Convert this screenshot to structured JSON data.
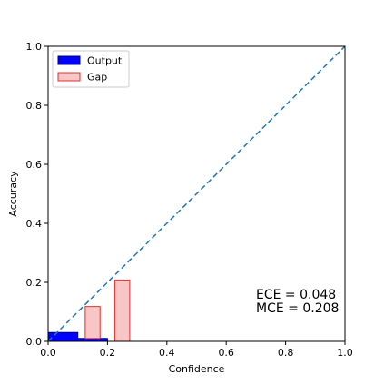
{
  "chart_data": {
    "type": "bar",
    "xlabel": "Confidence",
    "ylabel": "Accuracy",
    "xlim": [
      0,
      1
    ],
    "ylim": [
      0,
      1
    ],
    "xticks": [
      "0.0",
      "0.2",
      "0.4",
      "0.6",
      "0.8",
      "1.0"
    ],
    "yticks": [
      "0.0",
      "0.2",
      "0.4",
      "0.6",
      "0.8",
      "1.0"
    ],
    "grid": false,
    "legend": {
      "placement": "top-left",
      "entries": [
        "Output",
        "Gap"
      ]
    },
    "diagonal": {
      "from": [
        0,
        0
      ],
      "to": [
        1,
        1
      ],
      "style": "dashed",
      "color": "#1f77b4"
    },
    "series": [
      {
        "name": "Output",
        "color": "#0000ff",
        "edge": "#00007a",
        "bars": [
          {
            "x0": 0.0,
            "x1": 0.1,
            "y": 0.03
          },
          {
            "x0": 0.1,
            "x1": 0.2,
            "y": 0.01
          }
        ]
      },
      {
        "name": "Gap",
        "color": "#f8c6c6",
        "edge": "#e03030",
        "bars": [
          {
            "x0": 0.125,
            "x1": 0.175,
            "y0": 0.01,
            "y1": 0.118
          },
          {
            "x0": 0.225,
            "x1": 0.275,
            "y0": 0.0,
            "y1": 0.208
          }
        ]
      }
    ],
    "annotations": [
      "ECE = 0.048",
      "MCE = 0.208"
    ]
  }
}
